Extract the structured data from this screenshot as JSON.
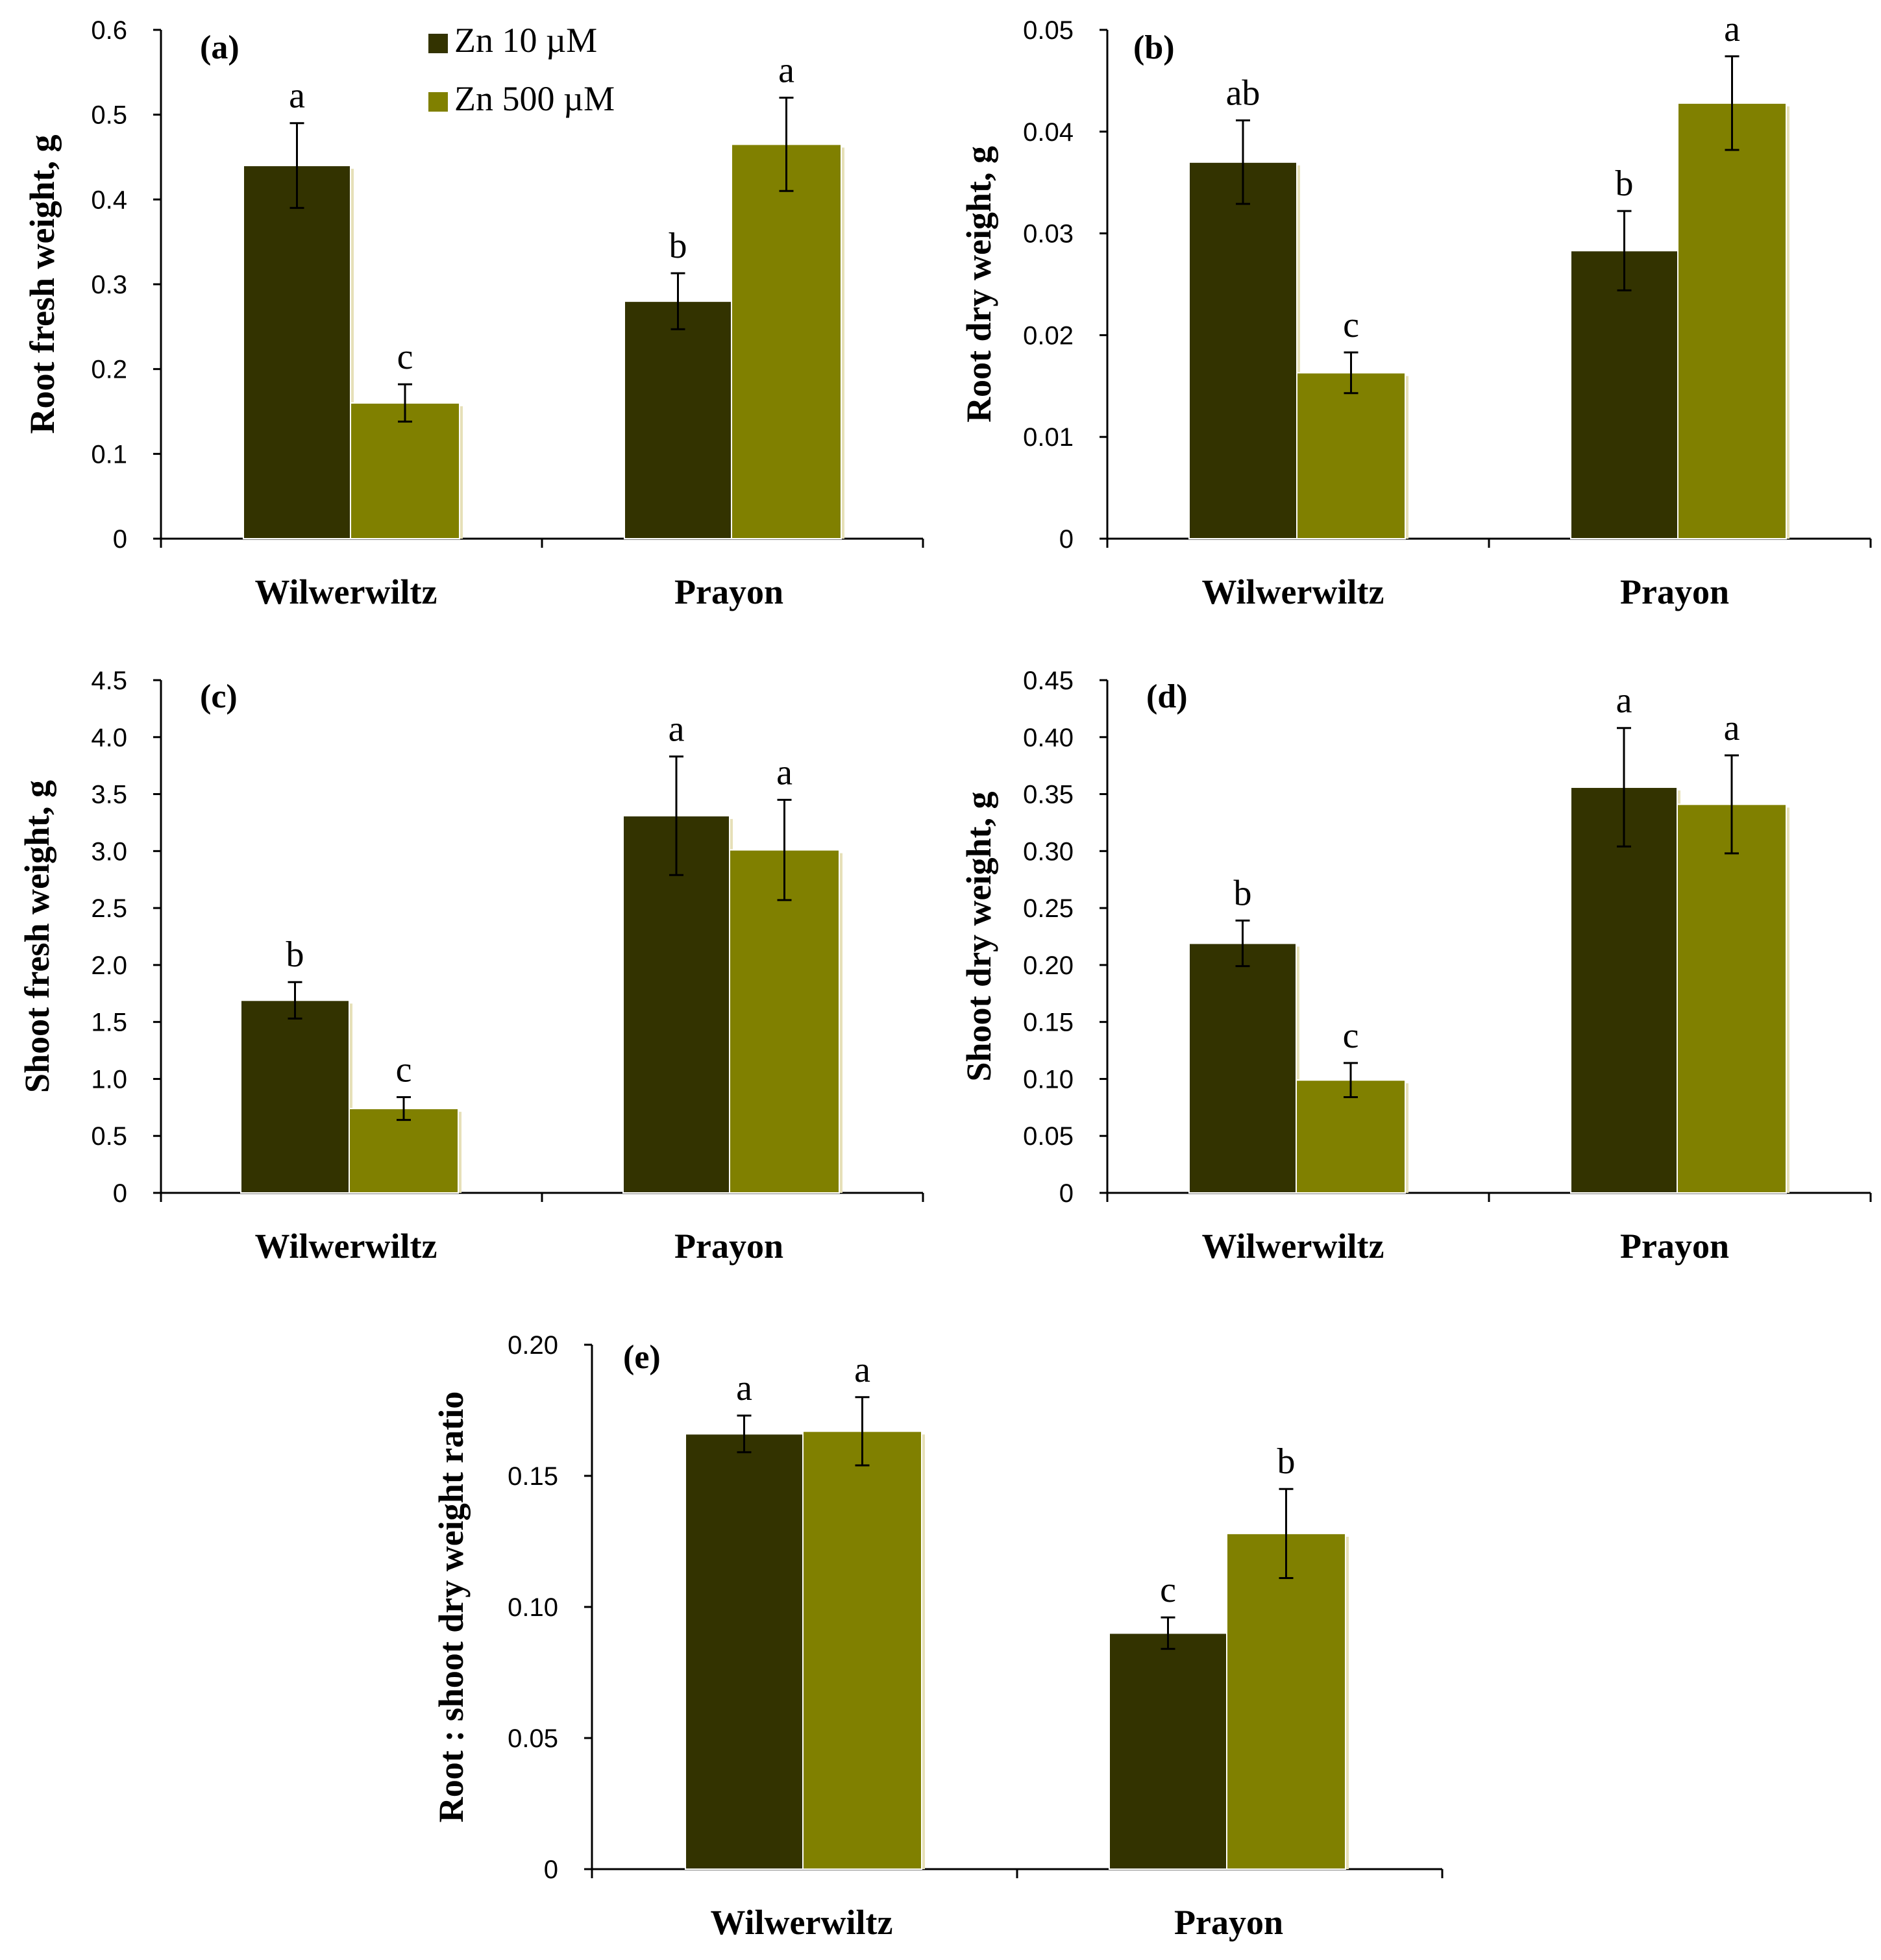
{
  "legend": [
    {
      "label": "Zn 10 µM",
      "color": "#333300"
    },
    {
      "label": "Zn 500 µM",
      "color": "#808000"
    }
  ],
  "chart_data": [
    {
      "type": "bar",
      "panel": "(a)",
      "ylabel": "Root fresh weight, g",
      "categories": [
        "Wilwerwiltz",
        "Prayon"
      ],
      "ylim": [
        0,
        0.6
      ],
      "yticks": [
        "0",
        "0.1",
        "0.2",
        "0.3",
        "0.4",
        "0.5",
        "0.6"
      ],
      "series": [
        {
          "name": "Zn 10 µM",
          "values": [
            0.44,
            0.28
          ],
          "errors": [
            0.05,
            0.033
          ],
          "letters": [
            "a",
            "b"
          ]
        },
        {
          "name": "Zn 500 µM",
          "values": [
            0.16,
            0.465
          ],
          "errors": [
            0.022,
            0.055
          ],
          "letters": [
            "c",
            "a"
          ]
        }
      ]
    },
    {
      "type": "bar",
      "panel": "(b)",
      "ylabel": "Root dry weight, g",
      "categories": [
        "Wilwerwiltz",
        "Prayon"
      ],
      "ylim": [
        0,
        0.05
      ],
      "yticks": [
        "0",
        "0.01",
        "0.02",
        "0.03",
        "0.04",
        "0.05"
      ],
      "series": [
        {
          "name": "Zn 10 µM",
          "values": [
            0.037,
            0.0283
          ],
          "errors": [
            0.0041,
            0.0039
          ],
          "letters": [
            "ab",
            "b"
          ]
        },
        {
          "name": "Zn 500 µM",
          "values": [
            0.0163,
            0.0428
          ],
          "errors": [
            0.002,
            0.0046
          ],
          "letters": [
            "c",
            "a"
          ]
        }
      ]
    },
    {
      "type": "bar",
      "panel": "(c)",
      "ylabel": "Shoot fresh weight, g",
      "categories": [
        "Wilwerwiltz",
        "Prayon"
      ],
      "ylim": [
        0,
        4.5
      ],
      "yticks": [
        "0",
        "0.5",
        "1.0",
        "1.5",
        "2.0",
        "2.5",
        "3.0",
        "3.5",
        "4.0",
        "4.5"
      ],
      "series": [
        {
          "name": "Zn 10 µM",
          "values": [
            1.69,
            3.31
          ],
          "errors": [
            0.16,
            0.52
          ],
          "letters": [
            "b",
            "a"
          ]
        },
        {
          "name": "Zn 500 µM",
          "values": [
            0.74,
            3.01
          ],
          "errors": [
            0.1,
            0.44
          ],
          "letters": [
            "c",
            "a"
          ]
        }
      ]
    },
    {
      "type": "bar",
      "panel": "(d)",
      "ylabel": "Shoot dry weight, g",
      "categories": [
        "Wilwerwiltz",
        "Prayon"
      ],
      "ylim": [
        0,
        0.45
      ],
      "yticks": [
        "0",
        "0.05",
        "0.10",
        "0.15",
        "0.20",
        "0.25",
        "0.30",
        "0.35",
        "0.40",
        "0.45"
      ],
      "series": [
        {
          "name": "Zn 10 µM",
          "values": [
            0.219,
            0.356
          ],
          "errors": [
            0.02,
            0.052
          ],
          "letters": [
            "b",
            "a"
          ]
        },
        {
          "name": "Zn 500 µM",
          "values": [
            0.099,
            0.341
          ],
          "errors": [
            0.015,
            0.043
          ],
          "letters": [
            "c",
            "a"
          ]
        }
      ]
    },
    {
      "type": "bar",
      "panel": "(e)",
      "ylabel": "Root : shoot dry weight ratio",
      "categories": [
        "Wilwerwiltz",
        "Prayon"
      ],
      "ylim": [
        0,
        0.2
      ],
      "yticks": [
        "0",
        "0.05",
        "0.10",
        "0.15",
        "0.20"
      ],
      "series": [
        {
          "name": "Zn 10 µM",
          "values": [
            0.166,
            0.09
          ],
          "errors": [
            0.007,
            0.006
          ],
          "letters": [
            "a",
            "c"
          ]
        },
        {
          "name": "Zn 500 µM",
          "values": [
            0.167,
            0.128
          ],
          "errors": [
            0.013,
            0.017
          ],
          "letters": [
            "a",
            "b"
          ]
        }
      ]
    }
  ]
}
